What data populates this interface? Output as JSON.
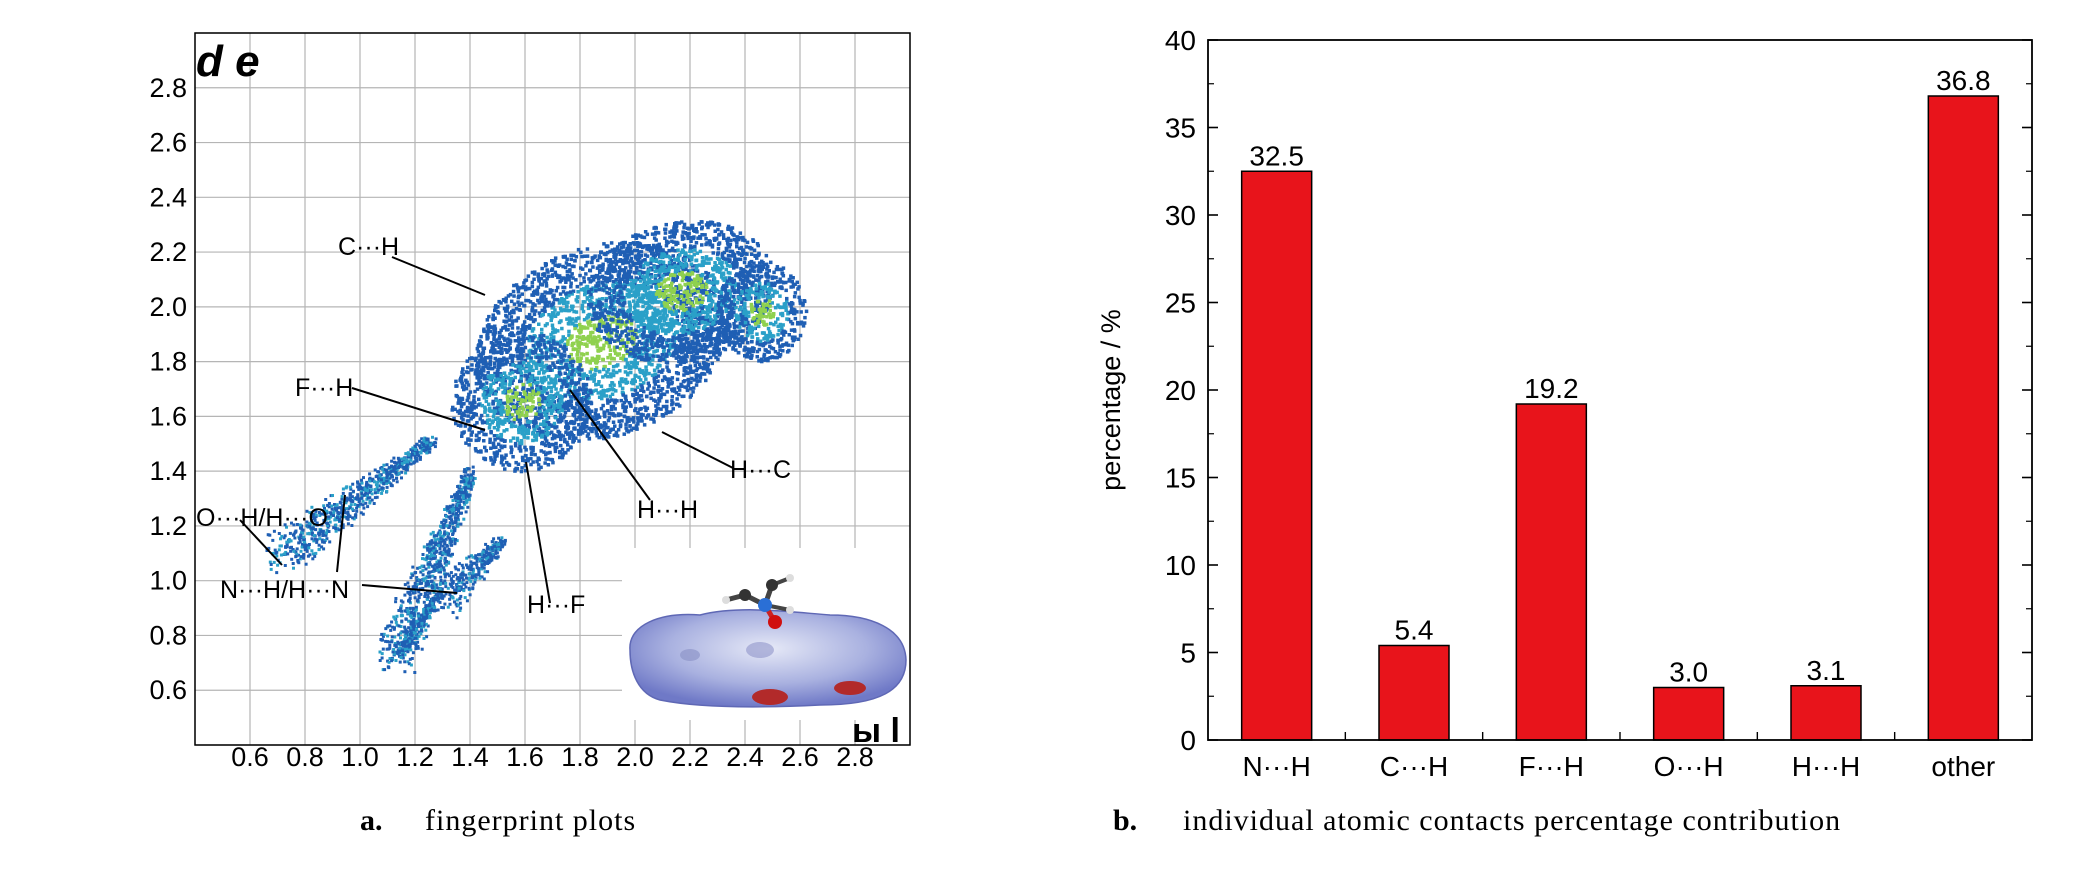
{
  "panel_a": {
    "caption_letter": "a.",
    "caption_text": "fingerprint plots",
    "title_fragment_top": "d e",
    "title_fragment_bottom": "ы l",
    "ticks": [
      "0.6",
      "0.8",
      "1.0",
      "1.2",
      "1.4",
      "1.6",
      "1.8",
      "2.0",
      "2.2",
      "2.4",
      "2.6",
      "2.8"
    ],
    "annotations": [
      "C···H",
      "F···H",
      "H···C",
      "H···H",
      "O···H/H···O",
      "N···H/H···N",
      "H···F"
    ],
    "colors": {
      "low": "#1f5fb4",
      "mid": "#2aa0c8",
      "high": "#8fd14f",
      "frame": "#000000",
      "grid": "#b5b5b5"
    }
  },
  "panel_b": {
    "caption_letter": "b.",
    "caption_text": "individual atomic contacts percentage contribution"
  },
  "chart_data": [
    {
      "type": "scatter",
      "x_range": [
        0.4,
        3.0
      ],
      "y_range": [
        0.4,
        3.0
      ],
      "xticks": [
        0.6,
        0.8,
        1.0,
        1.2,
        1.4,
        1.6,
        1.8,
        2.0,
        2.2,
        2.4,
        2.6,
        2.8
      ],
      "yticks": [
        0.6,
        0.8,
        1.0,
        1.2,
        1.4,
        1.6,
        1.8,
        2.0,
        2.2,
        2.4,
        2.6,
        2.8
      ],
      "grid": true,
      "annotations": [
        {
          "text": "C···H",
          "x": 1.5,
          "y": 2.12
        },
        {
          "text": "F···H",
          "x": 1.55,
          "y": 1.6
        },
        {
          "text": "H···C",
          "x": 2.2,
          "y": 1.58
        },
        {
          "text": "H···H",
          "x": 1.95,
          "y": 1.78
        },
        {
          "text": "O···H/H···O",
          "x": 0.75,
          "y": 1.08
        },
        {
          "text": "N···H/H···N",
          "x": 1.35,
          "y": 0.98
        },
        {
          "text": "H···F",
          "x": 1.7,
          "y": 1.45
        }
      ]
    },
    {
      "type": "bar",
      "categories": [
        "N···H",
        "C···H",
        "F···H",
        "O···H",
        "H···H",
        "other"
      ],
      "values": [
        32.5,
        5.4,
        19.2,
        3.0,
        3.1,
        36.8
      ],
      "value_labels": [
        "32.5",
        "5.4",
        "19.2",
        "3.0",
        "3.1",
        "36.8"
      ],
      "ylabel": "percentage / %",
      "ylim": [
        0,
        40
      ],
      "yticks": [
        0,
        5,
        10,
        15,
        20,
        25,
        30,
        35,
        40
      ],
      "ytick_labels": [
        "0",
        "5",
        "10",
        "15",
        "20",
        "25",
        "30",
        "35",
        "40"
      ],
      "bar_color": "#e8141b",
      "grid": false
    }
  ]
}
